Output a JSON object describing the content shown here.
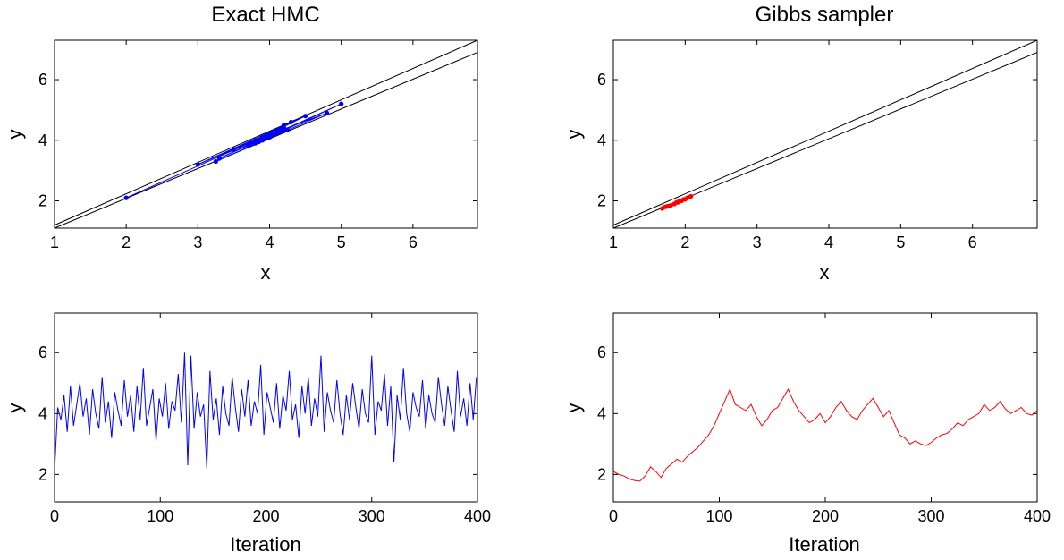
{
  "chart_data": [
    {
      "type": "scatter",
      "title": "Exact HMC",
      "xlabel": "x",
      "ylabel": "y",
      "xlim": [
        1,
        6.9
      ],
      "ylim": [
        1.1,
        7.3
      ],
      "xticks": [
        1,
        2,
        3,
        4,
        5,
        6
      ],
      "yticks": [
        2,
        4,
        6
      ],
      "grid": false,
      "reference_lines": [
        {
          "x": [
            1,
            6.9
          ],
          "y": [
            1.2,
            7.3
          ]
        },
        {
          "x": [
            1,
            6.9
          ],
          "y": [
            1.1,
            6.9
          ]
        }
      ],
      "series": [
        {
          "color": "#0000ff",
          "connected": true,
          "markers": true,
          "x": [
            2.0,
            4.0,
            3.8,
            4.2,
            3.7,
            4.3,
            3.9,
            5.0,
            3.3,
            4.1,
            3.0,
            4.5,
            3.9,
            4.0,
            3.5,
            4.2,
            3.8,
            4.1,
            3.9,
            4.8,
            3.25,
            4.25,
            3.95,
            3.85,
            4.0
          ],
          "y": [
            2.1,
            4.2,
            3.9,
            4.4,
            3.8,
            4.6,
            4.0,
            5.2,
            3.4,
            4.3,
            3.2,
            4.8,
            4.1,
            4.2,
            3.7,
            4.5,
            4.0,
            4.3,
            4.1,
            4.9,
            3.3,
            4.35,
            4.15,
            3.95,
            4.1
          ]
        }
      ]
    },
    {
      "type": "scatter",
      "title": "Gibbs sampler",
      "xlabel": "x",
      "ylabel": "y",
      "xlim": [
        1,
        6.9
      ],
      "ylim": [
        1.1,
        7.3
      ],
      "xticks": [
        1,
        2,
        3,
        4,
        5,
        6
      ],
      "yticks": [
        2,
        4,
        6
      ],
      "grid": false,
      "reference_lines": [
        {
          "x": [
            1,
            6.9
          ],
          "y": [
            1.2,
            7.3
          ]
        },
        {
          "x": [
            1,
            6.9
          ],
          "y": [
            1.1,
            6.9
          ]
        }
      ],
      "series": [
        {
          "color": "#ff0000",
          "connected": true,
          "markers": true,
          "x": [
            1.68,
            1.72,
            1.75,
            1.8,
            1.78,
            1.85,
            1.9,
            1.95,
            2.0,
            2.03,
            2.08,
            2.05,
            1.98,
            1.92,
            1.88
          ],
          "y": [
            1.75,
            1.8,
            1.82,
            1.85,
            1.83,
            1.9,
            1.95,
            2.0,
            2.05,
            2.1,
            2.15,
            2.12,
            2.05,
            2.0,
            1.95
          ]
        }
      ]
    },
    {
      "type": "line",
      "title": "",
      "xlabel": "Iteration",
      "ylabel": "y",
      "xlim": [
        0,
        400
      ],
      "ylim": [
        1.1,
        7.3
      ],
      "xticks": [
        0,
        100,
        200,
        300,
        400
      ],
      "yticks": [
        2,
        4,
        6
      ],
      "grid": false,
      "series": [
        {
          "color": "#0000ff",
          "x": [
            0,
            3,
            6,
            9,
            12,
            15,
            18,
            21,
            24,
            27,
            30,
            33,
            36,
            39,
            42,
            45,
            48,
            51,
            54,
            57,
            60,
            63,
            66,
            69,
            72,
            75,
            78,
            81,
            84,
            87,
            90,
            93,
            96,
            99,
            102,
            105,
            108,
            111,
            114,
            117,
            120,
            123,
            126,
            129,
            132,
            135,
            138,
            141,
            144,
            147,
            150,
            153,
            156,
            159,
            162,
            165,
            168,
            171,
            174,
            177,
            180,
            183,
            186,
            189,
            192,
            195,
            198,
            201,
            204,
            207,
            210,
            213,
            216,
            219,
            222,
            225,
            228,
            231,
            234,
            237,
            240,
            243,
            246,
            249,
            252,
            255,
            258,
            261,
            264,
            267,
            270,
            273,
            276,
            279,
            282,
            285,
            288,
            291,
            294,
            297,
            300,
            303,
            306,
            309,
            312,
            315,
            318,
            321,
            324,
            327,
            330,
            333,
            336,
            339,
            342,
            345,
            348,
            351,
            354,
            357,
            360,
            363,
            366,
            369,
            372,
            375,
            378,
            381,
            384,
            387,
            390,
            393,
            396,
            399
          ],
          "y": [
            2.1,
            4.2,
            3.8,
            4.6,
            3.4,
            4.9,
            3.6,
            4.3,
            5.0,
            3.9,
            4.5,
            3.3,
            4.8,
            4.0,
            3.5,
            5.2,
            3.7,
            4.4,
            3.2,
            4.7,
            4.1,
            3.6,
            5.1,
            3.9,
            4.6,
            3.4,
            4.9,
            3.8,
            5.5,
            3.6,
            4.2,
            4.8,
            3.1,
            4.5,
            3.9,
            5.0,
            3.5,
            4.4,
            4.1,
            5.3,
            3.7,
            6.0,
            2.3,
            5.9,
            3.5,
            4.7,
            3.9,
            4.3,
            2.2,
            5.4,
            3.8,
            4.5,
            3.3,
            4.9,
            4.0,
            3.6,
            5.2,
            4.2,
            3.4,
            4.8,
            3.9,
            5.1,
            3.6,
            4.4,
            4.0,
            5.6,
            3.3,
            4.7,
            4.2,
            3.7,
            5.0,
            3.5,
            4.6,
            4.1,
            5.4,
            3.8,
            4.3,
            3.2,
            4.9,
            4.0,
            5.2,
            3.6,
            4.5,
            3.9,
            5.9,
            3.4,
            4.7,
            4.1,
            3.7,
            5.1,
            4.0,
            3.3,
            4.6,
            3.8,
            5.0,
            4.2,
            3.5,
            4.8,
            4.0,
            3.7,
            5.9,
            3.3,
            4.4,
            4.1,
            5.3,
            3.6,
            4.9,
            2.4,
            4.6,
            3.8,
            5.5,
            4.0,
            3.4,
            4.7,
            4.2,
            3.9,
            5.1,
            3.5,
            4.6,
            4.0,
            3.7,
            5.2,
            4.3,
            3.6,
            4.9,
            4.1,
            3.4,
            5.4,
            3.9,
            4.5,
            3.6,
            5.0,
            3.8,
            5.2
          ]
        }
      ]
    },
    {
      "type": "line",
      "title": "",
      "xlabel": "Iteration",
      "ylabel": "y",
      "xlim": [
        0,
        400
      ],
      "ylim": [
        1.1,
        7.3
      ],
      "xticks": [
        0,
        100,
        200,
        300,
        400
      ],
      "yticks": [
        2,
        4,
        6
      ],
      "grid": false,
      "series": [
        {
          "color": "#ff0000",
          "x": [
            0,
            5,
            10,
            15,
            20,
            25,
            30,
            35,
            40,
            45,
            50,
            55,
            60,
            65,
            70,
            75,
            80,
            85,
            90,
            95,
            100,
            105,
            110,
            115,
            120,
            125,
            130,
            135,
            140,
            145,
            150,
            155,
            160,
            165,
            170,
            175,
            180,
            185,
            190,
            195,
            200,
            205,
            210,
            215,
            220,
            225,
            230,
            235,
            240,
            245,
            250,
            255,
            260,
            265,
            270,
            275,
            280,
            285,
            290,
            295,
            300,
            305,
            310,
            315,
            320,
            325,
            330,
            335,
            340,
            345,
            350,
            355,
            360,
            365,
            370,
            375,
            380,
            385,
            390,
            395,
            400
          ],
          "y": [
            2.1,
            2.0,
            1.95,
            1.85,
            1.8,
            1.78,
            1.95,
            2.25,
            2.1,
            1.9,
            2.2,
            2.35,
            2.5,
            2.4,
            2.6,
            2.75,
            2.9,
            3.1,
            3.3,
            3.6,
            4.0,
            4.4,
            4.8,
            4.3,
            4.2,
            4.1,
            4.3,
            3.9,
            3.6,
            3.8,
            4.1,
            4.2,
            4.5,
            4.8,
            4.4,
            4.1,
            3.9,
            3.7,
            3.8,
            4.0,
            3.7,
            3.9,
            4.2,
            4.4,
            4.1,
            3.9,
            3.8,
            4.1,
            4.3,
            4.5,
            4.2,
            3.9,
            4.1,
            3.7,
            3.3,
            3.2,
            3.0,
            3.1,
            3.0,
            2.95,
            3.05,
            3.2,
            3.3,
            3.35,
            3.5,
            3.7,
            3.6,
            3.8,
            3.9,
            4.0,
            4.3,
            4.1,
            4.2,
            4.4,
            4.15,
            4.0,
            4.1,
            4.2,
            4.0,
            3.95,
            4.1
          ]
        }
      ]
    }
  ]
}
